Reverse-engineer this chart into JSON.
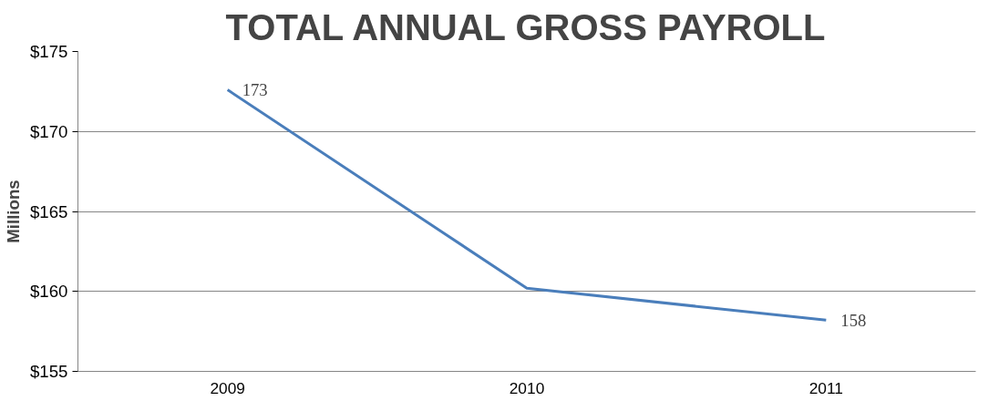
{
  "chart_data": {
    "type": "line",
    "title": "TOTAL ANNUAL GROSS PAYROLL",
    "ylabel": "Millions",
    "categories": [
      "2009",
      "2010",
      "2011"
    ],
    "values": [
      172.6,
      160.2,
      158.2
    ],
    "value_labels": [
      "173",
      null,
      "158"
    ],
    "color": "#4a7ebb",
    "ylim": [
      155,
      175
    ],
    "yticks": [
      {
        "value": 155,
        "label": "$155"
      },
      {
        "value": 160,
        "label": "$160"
      },
      {
        "value": 165,
        "label": "$165"
      },
      {
        "value": 170,
        "label": "$170"
      },
      {
        "value": 175,
        "label": "$175"
      }
    ],
    "grid": "y"
  }
}
